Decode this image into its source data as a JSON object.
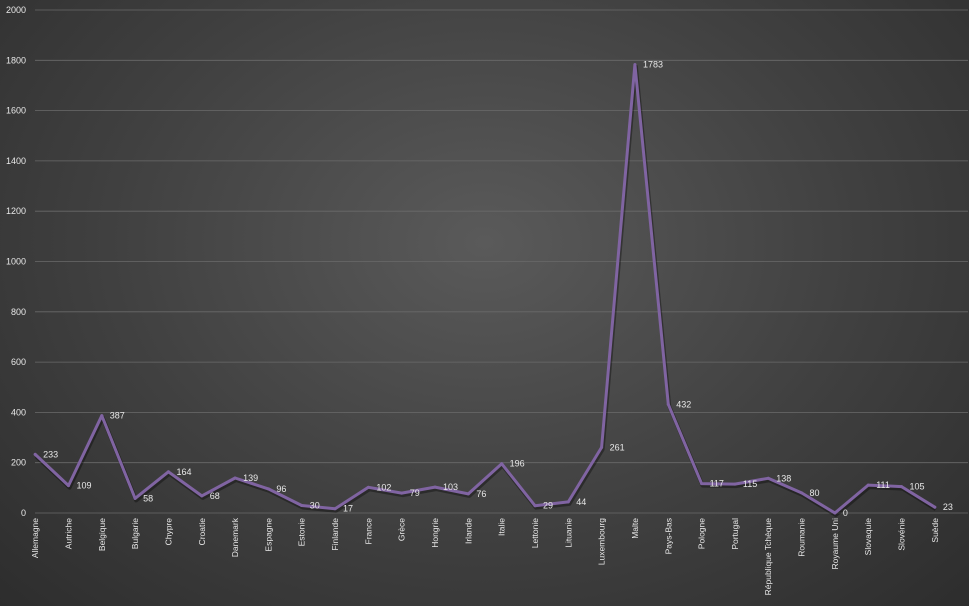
{
  "chart_data": {
    "type": "line",
    "title": "",
    "xlabel": "",
    "ylabel": "",
    "ylim": [
      0,
      2000
    ],
    "yticks": [
      0,
      200,
      400,
      600,
      800,
      1000,
      1200,
      1400,
      1600,
      1800,
      2000
    ],
    "grid": true,
    "legend": "none",
    "line_color": "#8064a2",
    "categories": [
      "Allemagne",
      "Autriche",
      "Belgique",
      "Bulgarie",
      "Chypre",
      "Croatie",
      "Danemark",
      "Espagne",
      "Estonie",
      "Finlande",
      "France",
      "Grèce",
      "Hongrie",
      "Irlande",
      "Italie",
      "Lettonie",
      "Lituanie",
      "Luxembourg",
      "Malte",
      "Pays-Bas",
      "Pologne",
      "Portugal",
      "République Tchèque",
      "Roumanie",
      "Royaume Uni",
      "Slovaquie",
      "Slovénie",
      "Suède"
    ],
    "series": [
      {
        "values": [
          233,
          109,
          387,
          58,
          164,
          68,
          139,
          96,
          30,
          17,
          102,
          79,
          103,
          76,
          196,
          29,
          44,
          261,
          1783,
          432,
          117,
          115,
          138,
          80,
          0,
          111,
          105,
          23
        ]
      }
    ],
    "data_labels": [
      "233",
      "109",
      "387",
      "58",
      "164",
      "68",
      "139",
      "96",
      "30",
      "17",
      "102",
      "79",
      "103",
      "76",
      "196",
      "29",
      "44",
      "261",
      "1783",
      "432",
      "117",
      "115",
      "138",
      "80",
      "0",
      "111",
      "105",
      "23"
    ]
  }
}
